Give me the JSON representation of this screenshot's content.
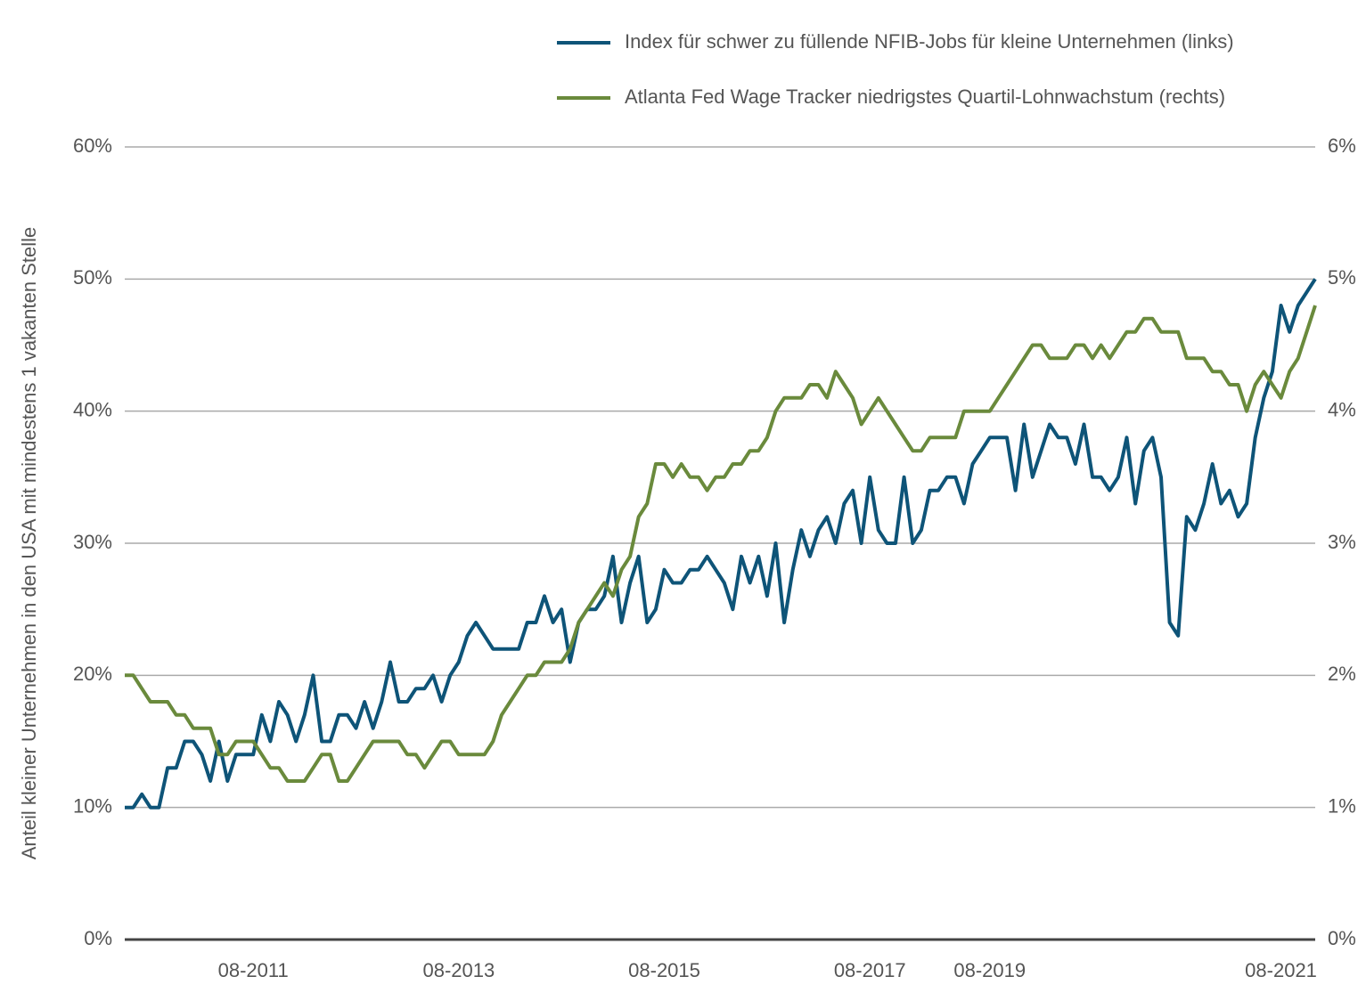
{
  "chart_data": {
    "type": "line",
    "legend": "top-right",
    "grid": true,
    "ylabel": "Anteil kleiner Unternehmen in den USA mit mindestens 1 vakanten Stelle",
    "categories": [
      null,
      null,
      null,
      null,
      null,
      null,
      null,
      null,
      null,
      null,
      null,
      null,
      null,
      null,
      null,
      "08-2011",
      null,
      null,
      null,
      null,
      null,
      null,
      null,
      null,
      null,
      null,
      null,
      null,
      null,
      null,
      null,
      null,
      null,
      null,
      null,
      null,
      null,
      null,
      null,
      "08-2013",
      null,
      null,
      null,
      null,
      null,
      null,
      null,
      null,
      null,
      null,
      null,
      null,
      null,
      null,
      null,
      null,
      null,
      null,
      null,
      null,
      null,
      null,
      null,
      "08-2015",
      null,
      null,
      null,
      null,
      null,
      null,
      null,
      null,
      null,
      null,
      null,
      null,
      null,
      null,
      null,
      null,
      null,
      null,
      null,
      null,
      null,
      null,
      null,
      "08-2017",
      null,
      null,
      null,
      null,
      null,
      null,
      null,
      null,
      null,
      null,
      null,
      null,
      null,
      "08-2019",
      null,
      null,
      null,
      null,
      null,
      null,
      null,
      null,
      null,
      null,
      null,
      null,
      null,
      null,
      null,
      null,
      null,
      null,
      null,
      null,
      null,
      null,
      null,
      null,
      null,
      null,
      null,
      null,
      null,
      null,
      null,
      null,
      null,
      "08-2021",
      null,
      null,
      null,
      null
    ],
    "ylim": [
      0,
      60
    ],
    "yticks": [
      {
        "value": 0,
        "label": "0%"
      },
      {
        "value": 10,
        "label": "10%"
      },
      {
        "value": 20,
        "label": "20%"
      },
      {
        "value": 30,
        "label": "30%"
      },
      {
        "value": 40,
        "label": "40%"
      },
      {
        "value": 50,
        "label": "50%"
      },
      {
        "value": 60,
        "label": "60%"
      }
    ],
    "y2lim": [
      0,
      6
    ],
    "y2ticks": [
      {
        "value": 0,
        "label": "0%"
      },
      {
        "value": 1,
        "label": "1%"
      },
      {
        "value": 2,
        "label": "2%"
      },
      {
        "value": 3,
        "label": "3%"
      },
      {
        "value": 4,
        "label": "4%"
      },
      {
        "value": 5,
        "label": "5%"
      },
      {
        "value": 6,
        "label": "6%"
      }
    ],
    "series": [
      {
        "name": "Index für schwer zu füllende NFIB-Jobs für kleine Unternehmen (links)",
        "color": "#0e5478",
        "values": [
          10,
          10,
          11,
          10,
          10,
          13,
          13,
          15,
          15,
          14,
          12,
          15,
          12,
          14,
          14,
          14,
          17,
          15,
          18,
          17,
          15,
          17,
          20,
          15,
          15,
          17,
          17,
          16,
          18,
          16,
          18,
          21,
          18,
          18,
          19,
          19,
          20,
          18,
          20,
          21,
          23,
          24,
          23,
          22,
          22,
          22,
          22,
          24,
          24,
          26,
          24,
          25,
          21,
          24,
          25,
          25,
          26,
          29,
          24,
          27,
          29,
          24,
          25,
          28,
          27,
          27,
          28,
          28,
          29,
          28,
          27,
          25,
          29,
          27,
          29,
          26,
          30,
          24,
          28,
          31,
          29,
          31,
          32,
          30,
          33,
          34,
          30,
          35,
          31,
          30,
          30,
          35,
          30,
          31,
          34,
          34,
          35,
          35,
          33,
          36,
          37,
          38,
          38,
          38,
          34,
          39,
          35,
          37,
          39,
          38,
          38,
          36,
          39,
          35,
          35,
          34,
          35,
          38,
          33,
          37,
          38,
          35,
          24,
          23,
          32,
          31,
          33,
          36,
          33,
          34,
          32,
          33,
          38,
          41,
          43,
          48,
          46,
          48,
          49,
          50
        ]
      },
      {
        "name": "Atlanta Fed Wage Tracker niedrigstes Quartil-Lohnwachstum (rechts)",
        "color": "#6a8a3c",
        "axis": "y2",
        "values": [
          2.0,
          2.0,
          1.9,
          1.8,
          1.8,
          1.8,
          1.7,
          1.7,
          1.6,
          1.6,
          1.6,
          1.4,
          1.4,
          1.5,
          1.5,
          1.5,
          1.4,
          1.3,
          1.3,
          1.2,
          1.2,
          1.2,
          1.3,
          1.4,
          1.4,
          1.2,
          1.2,
          1.3,
          1.4,
          1.5,
          1.5,
          1.5,
          1.5,
          1.4,
          1.4,
          1.3,
          1.4,
          1.5,
          1.5,
          1.4,
          1.4,
          1.4,
          1.4,
          1.5,
          1.7,
          1.8,
          1.9,
          2.0,
          2.0,
          2.1,
          2.1,
          2.1,
          2.2,
          2.4,
          2.5,
          2.6,
          2.7,
          2.6,
          2.8,
          2.9,
          3.2,
          3.3,
          3.6,
          3.6,
          3.5,
          3.6,
          3.5,
          3.5,
          3.4,
          3.5,
          3.5,
          3.6,
          3.6,
          3.7,
          3.7,
          3.8,
          4.0,
          4.1,
          4.1,
          4.1,
          4.2,
          4.2,
          4.1,
          4.3,
          4.2,
          4.1,
          3.9,
          4.0,
          4.1,
          4.0,
          3.9,
          3.8,
          3.7,
          3.7,
          3.8,
          3.8,
          3.8,
          3.8,
          4.0,
          4.0,
          4.0,
          4.0,
          4.1,
          4.2,
          4.3,
          4.4,
          4.5,
          4.5,
          4.4,
          4.4,
          4.4,
          4.5,
          4.5,
          4.4,
          4.5,
          4.4,
          4.5,
          4.6,
          4.6,
          4.7,
          4.7,
          4.6,
          4.6,
          4.6,
          4.4,
          4.4,
          4.4,
          4.3,
          4.3,
          4.2,
          4.2,
          4.0,
          4.2,
          4.3,
          4.2,
          4.1,
          4.3,
          4.4,
          4.6,
          4.8
        ]
      }
    ]
  }
}
